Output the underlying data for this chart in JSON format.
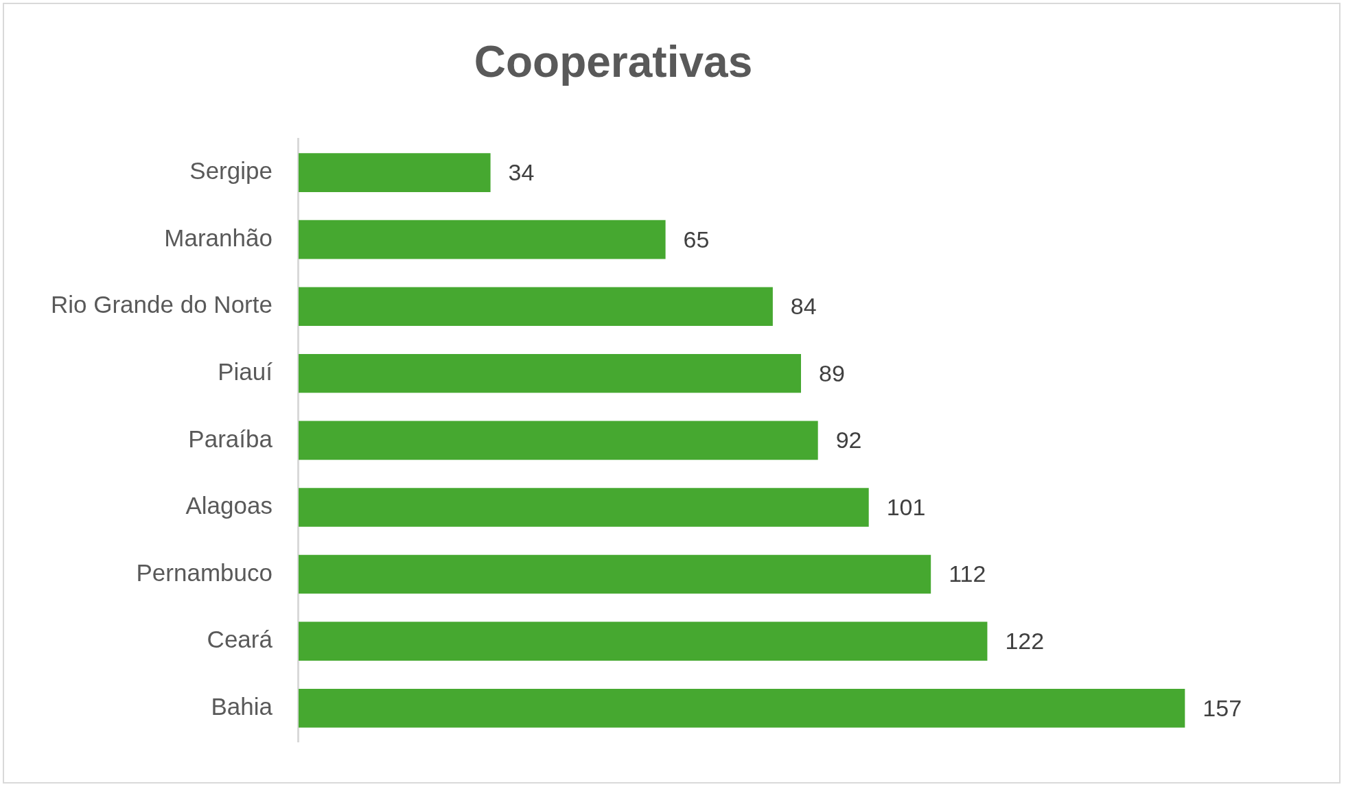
{
  "chart_data": {
    "type": "bar",
    "orientation": "horizontal",
    "title": "Cooperativas",
    "categories": [
      "Sergipe",
      "Maranhão",
      "Rio Grande do Norte",
      "Piauí",
      "Paraíba",
      "Alagoas",
      "Pernambuco",
      "Ceará",
      "Bahia"
    ],
    "values": [
      34,
      65,
      84,
      89,
      92,
      101,
      112,
      122,
      157
    ],
    "color": "#46a830",
    "data_labels": true,
    "legend": false
  }
}
